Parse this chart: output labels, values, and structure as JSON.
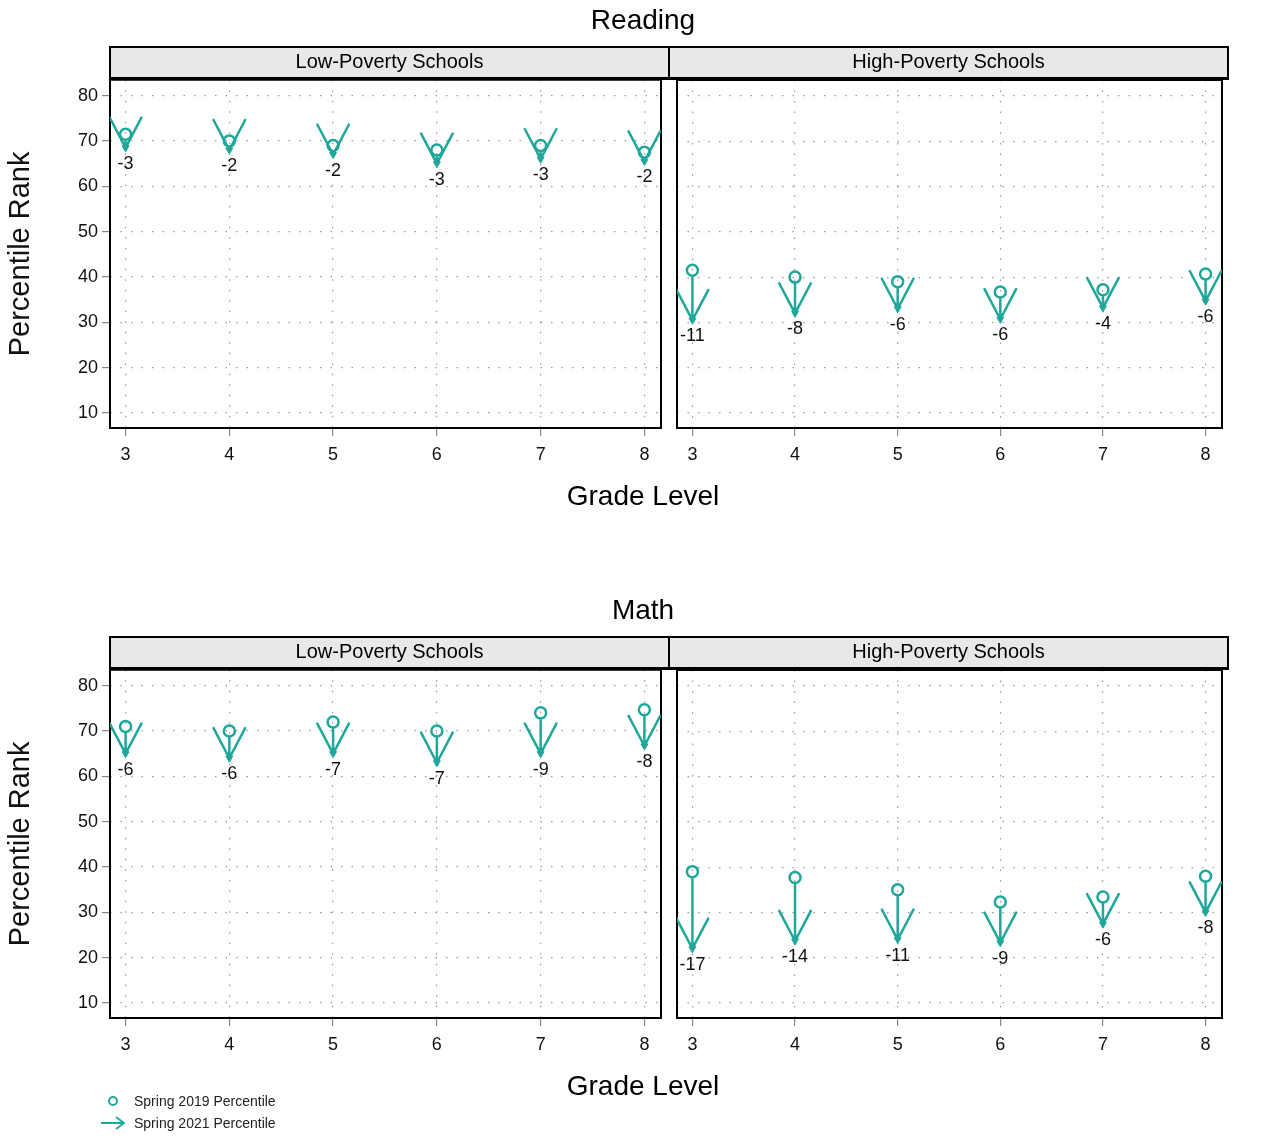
{
  "chart_data": [
    {
      "type": "scatter",
      "title": "Reading",
      "subtitle": "Low-Poverty Schools",
      "xlabel": "Grade Level",
      "ylabel": "Percentile Rank",
      "x": [
        3,
        4,
        5,
        6,
        7,
        8
      ],
      "xlim": [
        2.85,
        8.16
      ],
      "ylim": [
        6.7,
        83.5
      ],
      "xticks": [
        3,
        4,
        5,
        6,
        7,
        8
      ],
      "yticks": [
        10,
        20,
        30,
        40,
        50,
        60,
        70,
        80
      ],
      "grid": true,
      "series": [
        {
          "color": "#1fa79a",
          "marker": "circle",
          "values": [
            71.5,
            70,
            69,
            68,
            69,
            67.5
          ]
        },
        {
          "color": "#1fa79a",
          "marker": "triangle",
          "values": [
            68.5,
            68,
            67,
            65,
            66,
            65.5
          ]
        }
      ],
      "annotations": [
        {
          "text": "-3",
          "x": 3,
          "y": 68.5
        },
        {
          "text": "-2",
          "x": 4,
          "y": 68
        },
        {
          "text": "-2",
          "x": 5,
          "y": 67
        },
        {
          "text": "-3",
          "x": 6,
          "y": 65
        },
        {
          "text": "-3",
          "x": 7,
          "y": 66
        },
        {
          "text": "-2",
          "x": 8,
          "y": 65.5
        }
      ]
    },
    {
      "type": "scatter",
      "subtitle": "High-Poverty Schools",
      "x": [
        3,
        4,
        5,
        6,
        7,
        8
      ],
      "xlim": [
        2.85,
        8.16
      ],
      "ylim": [
        6.7,
        83.5
      ],
      "xticks": [
        3,
        4,
        5,
        6,
        7,
        8
      ],
      "yticks": [
        10,
        20,
        30,
        40,
        50,
        60,
        70,
        80
      ],
      "grid": true,
      "tick_labels": "x",
      "series": [
        {
          "color": "#1fa79a",
          "marker": "circle",
          "values": [
            41.5,
            40,
            39,
            36.7,
            37.2,
            40.7
          ]
        },
        {
          "color": "#1fa79a",
          "marker": "triangle",
          "values": [
            30.5,
            32,
            33,
            30.7,
            33.2,
            34.7
          ]
        }
      ],
      "annotations": [
        {
          "text": "-11",
          "x": 3,
          "y": 30.5
        },
        {
          "text": "-8",
          "x": 4,
          "y": 32
        },
        {
          "text": "-6",
          "x": 5,
          "y": 33
        },
        {
          "text": "-6",
          "x": 6,
          "y": 30.7
        },
        {
          "text": "-4",
          "x": 7,
          "y": 33.2
        },
        {
          "text": "-6",
          "x": 8,
          "y": 34.7
        }
      ]
    },
    {
      "type": "scatter",
      "title": "Math",
      "subtitle": "Low-Poverty Schools",
      "xlabel": "Grade Level",
      "ylabel": "Percentile Rank",
      "x": [
        3,
        4,
        5,
        6,
        7,
        8
      ],
      "xlim": [
        2.85,
        8.16
      ],
      "ylim": [
        6.7,
        83.5
      ],
      "xticks": [
        3,
        4,
        5,
        6,
        7,
        8
      ],
      "yticks": [
        10,
        20,
        30,
        40,
        50,
        60,
        70,
        80
      ],
      "grid": true,
      "legend": "bottom left",
      "series": [
        {
          "name": "Spring 2019 Percentile",
          "color": "#1fa79a",
          "marker": "circle",
          "values": [
            71,
            70,
            72,
            70,
            74,
            74.7
          ]
        },
        {
          "name": "Spring 2021 Percentile",
          "color": "#1fa79a",
          "marker": "triangle",
          "values": [
            65,
            64,
            65,
            63,
            65,
            66.7
          ]
        }
      ],
      "annotations": [
        {
          "text": "-6",
          "x": 3,
          "y": 65
        },
        {
          "text": "-6",
          "x": 4,
          "y": 64
        },
        {
          "text": "-7",
          "x": 5,
          "y": 65
        },
        {
          "text": "-7",
          "x": 6,
          "y": 63
        },
        {
          "text": "-9",
          "x": 7,
          "y": 65
        },
        {
          "text": "-8",
          "x": 8,
          "y": 66.7
        }
      ]
    },
    {
      "type": "scatter",
      "subtitle": "High-Poverty Schools",
      "x": [
        3,
        4,
        5,
        6,
        7,
        8
      ],
      "xlim": [
        2.85,
        8.16
      ],
      "ylim": [
        6.7,
        83.5
      ],
      "xticks": [
        3,
        4,
        5,
        6,
        7,
        8
      ],
      "yticks": [
        10,
        20,
        30,
        40,
        50,
        60,
        70,
        80
      ],
      "grid": true,
      "tick_labels": "x",
      "series": [
        {
          "color": "#1fa79a",
          "marker": "circle",
          "values": [
            39,
            37.7,
            35,
            32.3,
            33.4,
            38
          ]
        },
        {
          "color": "#1fa79a",
          "marker": "triangle",
          "values": [
            22,
            23.7,
            24,
            23.3,
            27.4,
            30
          ]
        }
      ],
      "annotations": [
        {
          "text": "-17",
          "x": 3,
          "y": 22
        },
        {
          "text": "-14",
          "x": 4,
          "y": 23.7
        },
        {
          "text": "-11",
          "x": 5,
          "y": 24
        },
        {
          "text": "-9",
          "x": 6,
          "y": 23.3
        },
        {
          "text": "-6",
          "x": 7,
          "y": 27.4
        },
        {
          "text": "-8",
          "x": 8,
          "y": 30
        }
      ]
    }
  ]
}
